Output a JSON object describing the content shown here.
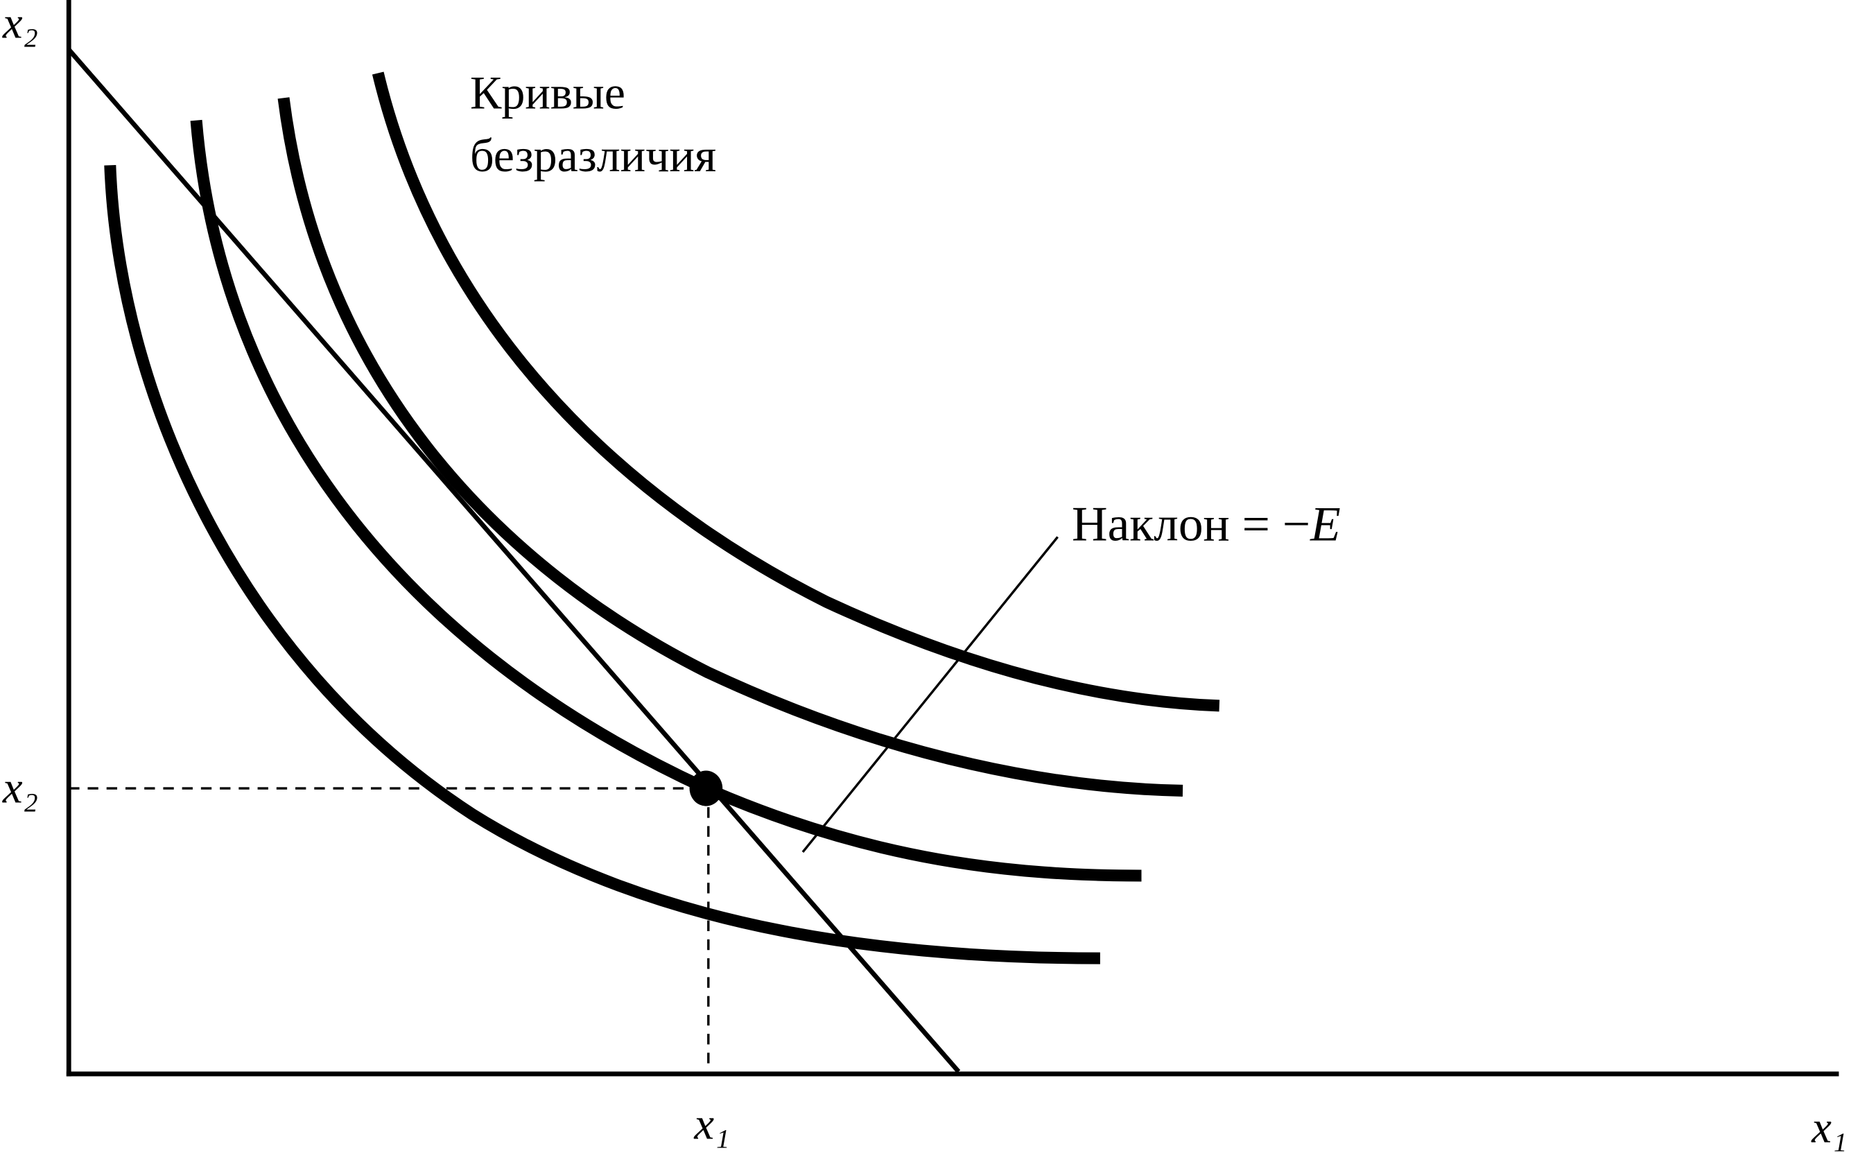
{
  "axes": {
    "y_label": "x₂",
    "x_label": "x₁"
  },
  "equilibrium": {
    "x_label": "x₁",
    "y_label": "x₂"
  },
  "curves_label": {
    "lines": [
      "Кривые",
      "безразличия"
    ]
  },
  "slope_label": {
    "text": "Наклон = −",
    "symbol": "E"
  }
}
